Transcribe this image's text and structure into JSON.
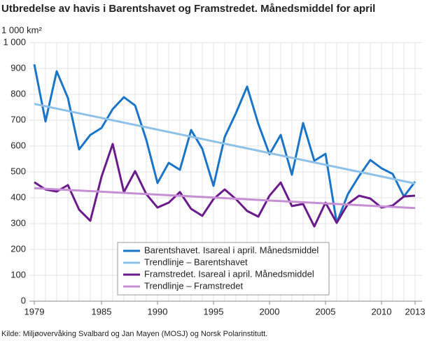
{
  "chart_data": {
    "type": "line",
    "title": "Utbredelse av havis i Barentshavet og Framstredet. Månedsmiddel for april",
    "y_label": "1 000 km²",
    "source": "Kilde: Miljøovervåking Svalbard og Jan Mayen (MOSJ) og Norsk Polarinstitutt.",
    "x": [
      1979,
      1980,
      1981,
      1982,
      1983,
      1984,
      1985,
      1986,
      1987,
      1988,
      1989,
      1990,
      1991,
      1992,
      1993,
      1994,
      1995,
      1996,
      1997,
      1998,
      1999,
      2000,
      2001,
      2002,
      2003,
      2004,
      2005,
      2006,
      2007,
      2008,
      2009,
      2010,
      2011,
      2012,
      2013
    ],
    "series": [
      {
        "name": "Barentshavet. Isareal i april. Månedsmiddel",
        "color": "#1a75c9",
        "values": [
          916,
          695,
          889,
          786,
          587,
          643,
          670,
          743,
          789,
          757,
          624,
          457,
          535,
          508,
          662,
          589,
          446,
          635,
          727,
          830,
          686,
          568,
          643,
          489,
          689,
          543,
          570,
          303,
          414,
          484,
          546,
          514,
          492,
          405,
          462
        ]
      },
      {
        "name": "Trendlinje – Barentshavet",
        "color": "#8ec1e8",
        "x": [
          1979,
          2013
        ],
        "values": [
          763,
          455
        ]
      },
      {
        "name": "Framstredet. Isareal i april. Månedsmiddel",
        "color": "#6b1a8c",
        "values": [
          460,
          432,
          424,
          449,
          354,
          311,
          481,
          608,
          422,
          503,
          414,
          362,
          381,
          422,
          357,
          330,
          395,
          432,
          395,
          349,
          327,
          408,
          459,
          368,
          376,
          289,
          381,
          303,
          376,
          408,
          397,
          362,
          370,
          405,
          408
        ]
      },
      {
        "name": "Trendlinje – Framstredet",
        "color": "#c68fd3",
        "x": [
          1979,
          2013
        ],
        "values": [
          437,
          360
        ]
      }
    ],
    "xlim": [
      1979,
      2013
    ],
    "xticks": [
      1979,
      1985,
      1990,
      1995,
      2000,
      2005,
      2010,
      2013
    ],
    "ylim": [
      0,
      1000
    ],
    "yticks": [
      0,
      100,
      200,
      300,
      400,
      500,
      600,
      700,
      800,
      900,
      {
        "value": 1000,
        "label": "1 000"
      }
    ],
    "grid": true,
    "legend": "bottom-center"
  }
}
